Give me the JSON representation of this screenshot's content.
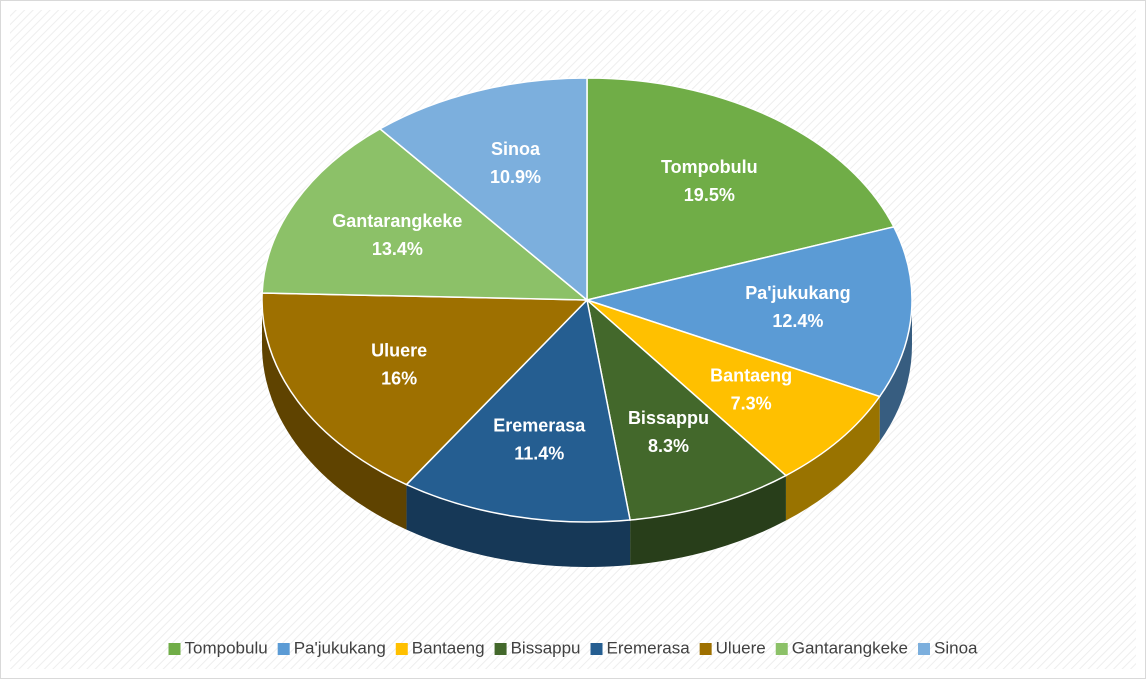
{
  "chart_data": {
    "type": "pie3d",
    "categories": [
      "Tompobulu",
      "Pa'jukukang",
      "Bantaeng",
      "Bissappu",
      "Eremerasa",
      "Uluere",
      "Gantarangkeke",
      "Sinoa"
    ],
    "values": [
      19.5,
      12.4,
      7.3,
      8.3,
      11.4,
      16,
      13.4,
      10.9
    ],
    "value_labels": [
      "19.5%",
      "12.4%",
      "7.3%",
      "8.3%",
      "11.4%",
      "16%",
      "13.4%",
      "10.9%"
    ],
    "colors": [
      "#70ad47",
      "#5b9bd5",
      "#ffc000",
      "#43682b",
      "#255e91",
      "#9e7000",
      "#8cc168",
      "#7cafdd"
    ],
    "legend": "bottom"
  }
}
